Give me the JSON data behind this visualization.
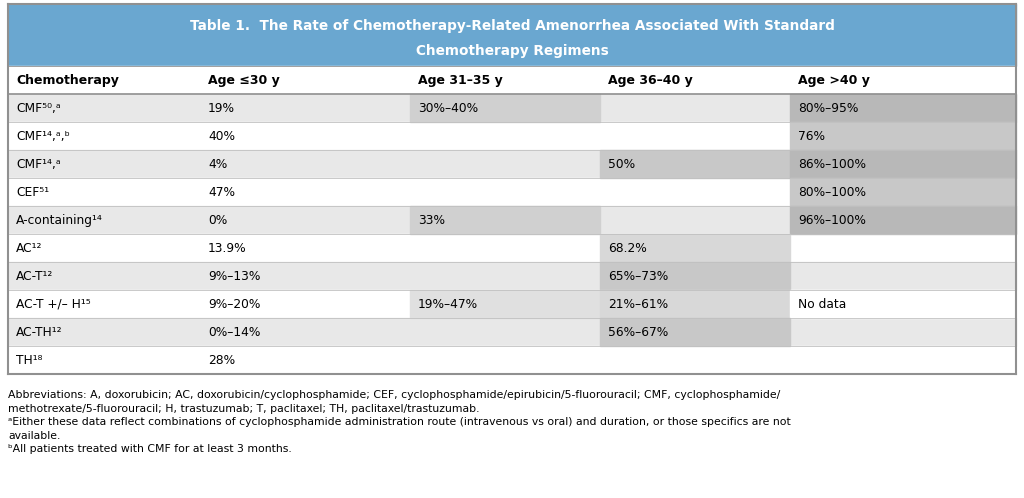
{
  "title_line1": "Table 1.  The Rate of Chemotherapy-Related Amenorrhea Associated With Standard",
  "title_line2": "Chemotherapy Regimens",
  "columns": [
    "Chemotherapy",
    "Age ≤30 y",
    "Age 31–35 y",
    "Age 36–40 y",
    "Age >40 y"
  ],
  "rows": [
    {
      "drug": "CMF⁵⁰,ᵃ",
      "c1": "19%",
      "c2": "30%–40%",
      "c3": "",
      "c4": "80%–95%",
      "shading": [
        0,
        0,
        1,
        0,
        1
      ]
    },
    {
      "drug": "CMF¹⁴,ᵃ,ᵇ",
      "c1": "40%",
      "c2": "",
      "c3": "",
      "c4": "76%",
      "shading": [
        1,
        1,
        0,
        0,
        1
      ]
    },
    {
      "drug": "CMF¹⁴,ᵃ",
      "c1": "4%",
      "c2": "",
      "c3": "50%",
      "c4": "86%–100%",
      "shading": [
        0,
        0,
        0,
        1,
        1
      ]
    },
    {
      "drug": "CEF⁵¹",
      "c1": "47%",
      "c2": "",
      "c3": "",
      "c4": "80%–100%",
      "shading": [
        1,
        1,
        0,
        0,
        1
      ]
    },
    {
      "drug": "A-containing¹⁴",
      "c1": "0%",
      "c2": "33%",
      "c3": "",
      "c4": "96%–100%",
      "shading": [
        0,
        0,
        1,
        0,
        1
      ]
    },
    {
      "drug": "AC¹²",
      "c1": "13.9%",
      "c2": "",
      "c3": "68.2%",
      "c4": "",
      "shading": [
        1,
        1,
        0,
        1,
        0
      ]
    },
    {
      "drug": "AC-T¹²",
      "c1": "9%–13%",
      "c2": "",
      "c3": "65%–73%",
      "c4": "",
      "shading": [
        0,
        0,
        0,
        1,
        0
      ]
    },
    {
      "drug": "AC-T +/– H¹⁵",
      "c1": "9%–20%",
      "c2": "19%–47%",
      "c3": "21%–61%",
      "c4": "No data",
      "shading": [
        1,
        1,
        1,
        1,
        2
      ]
    },
    {
      "drug": "AC-TH¹²",
      "c1": "0%–14%",
      "c2": "",
      "c3": "56%–67%",
      "c4": "",
      "shading": [
        0,
        0,
        0,
        1,
        0
      ]
    },
    {
      "drug": "TH¹⁸",
      "c1": "28%",
      "c2": "",
      "c3": "",
      "c4": "",
      "shading": [
        1,
        1,
        0,
        0,
        0
      ]
    }
  ],
  "fn1": "Abbreviations: A, doxorubicin; AC, doxorubicin/cyclophosphamide; CEF, cyclophosphamide/epirubicin/5-fluorouracil; CMF, cyclophosphamide/",
  "fn2": "methotrexate/5-fluorouracil; H, trastuzumab; T, paclitaxel; TH, paclitaxel/trastuzumab.",
  "fn3": "ᵃEither these data reflect combinations of cyclophosphamide administration route (intravenous vs oral) and duration, or those specifics are not",
  "fn4": "available.",
  "fn5": "ᵇAll patients treated with CMF for at least 3 months.",
  "header_blue": "#6aa7d0",
  "header_text": "#ffffff",
  "color_white": "#ffffff",
  "color_light_gray": "#e8e8e8",
  "color_mid_gray": "#c8c8c8",
  "color_dark_gray": "#b0b0b0",
  "color_col0_light": "#e8e8e8",
  "color_col0_dark": "#d0d0d0",
  "border_dark": "#909090",
  "border_light": "#c0c0c0",
  "bg": "#ffffff"
}
